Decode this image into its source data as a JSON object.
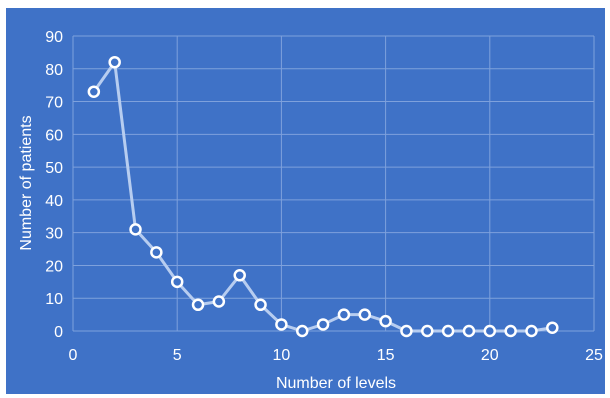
{
  "chart_data": {
    "type": "line",
    "title": "",
    "xlabel": "Number of levels",
    "ylabel": "Number of patients",
    "xlim": [
      0,
      25
    ],
    "ylim": [
      0,
      90
    ],
    "xticks": [
      0,
      5,
      10,
      15,
      20,
      25
    ],
    "yticks": [
      0,
      10,
      20,
      30,
      40,
      50,
      60,
      70,
      80,
      90
    ],
    "grid": true,
    "legend": "none",
    "colors": {
      "background": "#3f72c7",
      "grid": "#7ea1dc",
      "line": "#b7cdf0",
      "marker_fill": "#3f72c7",
      "marker_stroke": "#ffffff",
      "text": "#ffffff"
    },
    "series": [
      {
        "x": [
          1,
          2,
          3,
          4,
          5,
          6,
          7,
          8,
          9,
          10,
          11,
          12,
          13,
          14,
          15,
          16,
          17,
          18,
          19,
          20,
          21,
          22,
          23
        ],
        "y": [
          73,
          82,
          31,
          24,
          15,
          8,
          9,
          17,
          8,
          2,
          0,
          2,
          5,
          5,
          3,
          0,
          0,
          0,
          0,
          0,
          0,
          0,
          1
        ]
      }
    ]
  }
}
